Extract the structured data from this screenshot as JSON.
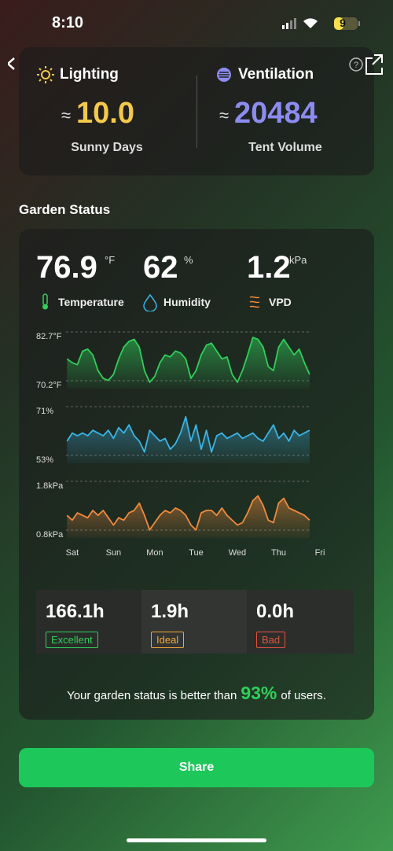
{
  "status_bar": {
    "time": "8:10",
    "battery": "9"
  },
  "header": {
    "lighting": {
      "title": "Lighting",
      "approx": "≈",
      "value": "10.0",
      "label": "Sunny Days"
    },
    "ventilation": {
      "title": "Ventilation",
      "approx": "≈",
      "value": "20484",
      "label": "Tent Volume"
    }
  },
  "garden_status": {
    "title": "Garden Status",
    "stats": [
      {
        "value": "76.9",
        "unit": "°F",
        "label": "Temperature"
      },
      {
        "value": "62",
        "unit": "%",
        "label": "Humidity"
      },
      {
        "value": "1.2",
        "unit": "kPa",
        "label": "VPD"
      }
    ],
    "hours": [
      {
        "value": "166.1h",
        "label": "Excellent"
      },
      {
        "value": "1.9h",
        "label": "Ideal"
      },
      {
        "value": "0.0h",
        "label": "Bad"
      }
    ],
    "summary": {
      "before": "Your garden status is better than",
      "highlight": "93%",
      "after": "of users."
    }
  },
  "chart_data": [
    {
      "type": "area",
      "color": "#2fcf5a",
      "x": [
        -0.125,
        0,
        0.125,
        0.25,
        0.375,
        0.5,
        0.625,
        0.75,
        0.875,
        1,
        1.125,
        1.25,
        1.375,
        1.5,
        1.625,
        1.75,
        1.875,
        2,
        2.125,
        2.25,
        2.375,
        2.5,
        2.625,
        2.75,
        2.875,
        3,
        3.125,
        3.25,
        3.375,
        3.5,
        3.625,
        3.75,
        3.875,
        4,
        4.125,
        4.25,
        4.375,
        4.5,
        4.625,
        4.75,
        4.875,
        5,
        5.125,
        5.25,
        5.375,
        5.5,
        5.625,
        5.75
      ],
      "values": [
        77,
        76,
        75.5,
        79,
        79.5,
        78,
        74,
        72,
        71.5,
        73,
        77,
        80,
        81.5,
        82,
        80,
        74,
        71,
        72.5,
        76,
        78,
        77.5,
        79,
        78.5,
        77,
        72,
        74,
        78,
        80.5,
        81,
        79,
        77,
        77.5,
        73,
        71,
        74,
        78,
        82.5,
        82,
        80,
        75,
        74,
        80,
        82,
        80,
        78,
        79.5,
        76,
        73
      ],
      "xlim": [
        -0.15,
        6
      ],
      "ylim": [
        70.2,
        82.7
      ],
      "yticks": [
        {
          "value": 82.7,
          "label": "82.7°F"
        },
        {
          "value": 70.2,
          "label": "70.2°F"
        }
      ]
    },
    {
      "type": "area",
      "color": "#3ab4e6",
      "x": [
        -0.125,
        0,
        0.125,
        0.25,
        0.375,
        0.5,
        0.625,
        0.75,
        0.875,
        1,
        1.125,
        1.25,
        1.375,
        1.5,
        1.625,
        1.75,
        1.875,
        2,
        2.125,
        2.25,
        2.375,
        2.5,
        2.625,
        2.75,
        2.875,
        3,
        3.125,
        3.25,
        3.375,
        3.5,
        3.625,
        3.75,
        3.875,
        4,
        4.125,
        4.25,
        4.375,
        4.5,
        4.625,
        4.75,
        4.875,
        5,
        5.125,
        5.25,
        5.375,
        5.5,
        5.625,
        5.75
      ],
      "values": [
        60,
        63,
        62,
        63,
        62,
        64,
        63,
        62,
        64,
        61,
        65,
        63,
        66,
        62,
        60,
        56,
        64,
        62,
        60,
        61,
        57,
        59,
        63,
        69,
        60,
        66,
        57,
        64,
        56,
        62,
        63,
        61,
        62,
        63,
        61,
        62,
        63,
        61,
        60,
        63,
        66,
        61,
        63,
        60,
        64,
        62,
        63,
        64
      ],
      "xlim": [
        -0.15,
        6
      ],
      "ylim": [
        53,
        71
      ],
      "yticks": [
        {
          "value": 71,
          "label": "71%"
        },
        {
          "value": 53,
          "label": "53%"
        }
      ]
    },
    {
      "type": "area",
      "color": "#f08a3c",
      "x": [
        -0.125,
        0,
        0.125,
        0.25,
        0.375,
        0.5,
        0.625,
        0.75,
        0.875,
        1,
        1.125,
        1.25,
        1.375,
        1.5,
        1.625,
        1.75,
        1.875,
        2,
        2.125,
        2.25,
        2.375,
        2.5,
        2.625,
        2.75,
        2.875,
        3,
        3.125,
        3.25,
        3.375,
        3.5,
        3.625,
        3.75,
        3.875,
        4,
        4.125,
        4.25,
        4.375,
        4.5,
        4.625,
        4.75,
        4.875,
        5,
        5.125,
        5.25,
        5.375,
        5.5,
        5.625,
        5.75
      ],
      "values": [
        1.2,
        1.1,
        1.25,
        1.2,
        1.15,
        1.3,
        1.2,
        1.3,
        1.15,
        1.0,
        1.15,
        1.1,
        1.25,
        1.3,
        1.45,
        1.2,
        0.9,
        1.05,
        1.2,
        1.3,
        1.25,
        1.35,
        1.3,
        1.2,
        1.0,
        0.9,
        1.25,
        1.3,
        1.3,
        1.2,
        1.35,
        1.2,
        1.1,
        1.0,
        1.05,
        1.25,
        1.5,
        1.6,
        1.4,
        1.1,
        1.05,
        1.45,
        1.55,
        1.35,
        1.3,
        1.25,
        1.2,
        1.1
      ],
      "xlim": [
        -0.15,
        6
      ],
      "ylim": [
        0.8,
        1.8
      ],
      "yticks": [
        {
          "value": 1.8,
          "label": "1.8kPa"
        },
        {
          "value": 0.8,
          "label": "0.8kPa"
        }
      ],
      "xticks": [
        {
          "value": 0,
          "label": "Sat"
        },
        {
          "value": 1,
          "label": "Sun"
        },
        {
          "value": 2,
          "label": "Mon"
        },
        {
          "value": 3,
          "label": "Tue"
        },
        {
          "value": 4,
          "label": "Wed"
        },
        {
          "value": 5,
          "label": "Thu"
        },
        {
          "value": 6,
          "label": "Fri"
        }
      ]
    }
  ],
  "share": {
    "label": "Share"
  }
}
